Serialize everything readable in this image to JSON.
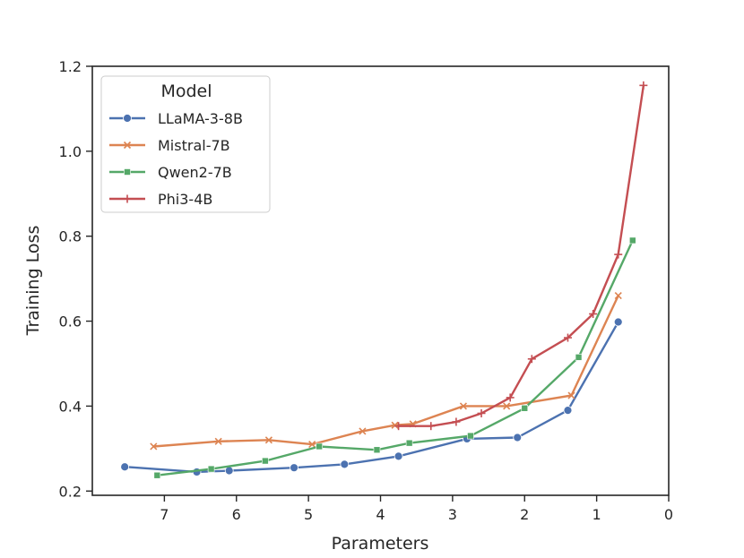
{
  "chart_data": {
    "type": "line",
    "title": "",
    "xlabel": "Parameters",
    "ylabel": "Training Loss",
    "xlim": [
      8.0,
      0.0
    ],
    "ylim": [
      0.19,
      1.2
    ],
    "x_inverted": true,
    "xticks": [
      7,
      6,
      5,
      4,
      3,
      2,
      1,
      0
    ],
    "yticks": [
      0.2,
      0.4,
      0.6,
      0.8,
      1.0,
      1.2
    ],
    "xtick_labels": [
      "7",
      "6",
      "5",
      "4",
      "3",
      "2",
      "1",
      "0"
    ],
    "ytick_labels": [
      "0.2",
      "0.4",
      "0.6",
      "0.8",
      "1.0",
      "1.2"
    ],
    "grid": false,
    "legend": {
      "title": "Model",
      "position": "top-left"
    },
    "series": [
      {
        "name": "LLaMA-3-8B",
        "color": "#4c72b0",
        "marker": "circle",
        "x": [
          7.55,
          6.55,
          6.1,
          5.2,
          4.5,
          3.75,
          2.8,
          2.1,
          1.4,
          0.7
        ],
        "y": [
          0.257,
          0.245,
          0.248,
          0.255,
          0.263,
          0.282,
          0.323,
          0.326,
          0.39,
          0.598
        ]
      },
      {
        "name": "Mistral-7B",
        "color": "#dd8452",
        "marker": "x",
        "x": [
          7.15,
          6.25,
          5.55,
          4.95,
          4.25,
          3.8,
          3.55,
          2.85,
          2.25,
          1.35,
          0.7
        ],
        "y": [
          0.305,
          0.317,
          0.32,
          0.31,
          0.341,
          0.355,
          0.358,
          0.4,
          0.4,
          0.425,
          0.66
        ]
      },
      {
        "name": "Qwen2-7B",
        "color": "#55a868",
        "marker": "square",
        "x": [
          7.1,
          6.35,
          5.6,
          4.85,
          4.05,
          3.6,
          2.75,
          2.0,
          1.25,
          0.5
        ],
        "y": [
          0.237,
          0.252,
          0.271,
          0.305,
          0.297,
          0.313,
          0.33,
          0.395,
          0.515,
          0.79
        ]
      },
      {
        "name": "Phi3-4B",
        "color": "#c44e52",
        "marker": "plus",
        "x": [
          3.75,
          3.3,
          2.95,
          2.6,
          2.2,
          1.9,
          1.4,
          1.05,
          0.7,
          0.35
        ],
        "y": [
          0.353,
          0.353,
          0.363,
          0.383,
          0.42,
          0.511,
          0.561,
          0.617,
          0.757,
          1.155
        ]
      }
    ]
  }
}
